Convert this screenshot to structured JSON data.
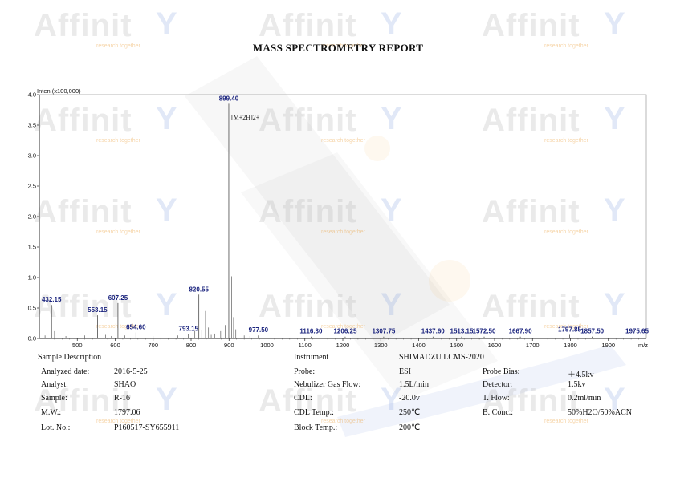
{
  "report_title": "MASS SPECTROMETRY REPORT",
  "watermark": {
    "brand": "Affinit",
    "tagline": "research together"
  },
  "chart_data": {
    "type": "line",
    "ylabel": "Inten.(x100,000)",
    "xlabel": "m/z",
    "xlim": [
      400,
      2000
    ],
    "ylim": [
      0,
      4.0
    ],
    "yticks": [
      "0.0",
      "0.5",
      "1.0",
      "1.5",
      "2.0",
      "2.5",
      "3.0",
      "3.5",
      "4.0"
    ],
    "xticks": [
      "500",
      "600",
      "700",
      "800",
      "900",
      "1000",
      "1100",
      "1200",
      "1300",
      "1400",
      "1500",
      "1600",
      "1700",
      "1800",
      "1900",
      "m/z"
    ],
    "annotation": "[M+2H]2+",
    "peaks": [
      {
        "mz": 432.15,
        "intensity": 0.55,
        "label": "432.15"
      },
      {
        "mz": 553.15,
        "intensity": 0.38,
        "label": "553.15"
      },
      {
        "mz": 607.25,
        "intensity": 0.58,
        "label": "607.25"
      },
      {
        "mz": 654.6,
        "intensity": 0.1,
        "label": "654.60"
      },
      {
        "mz": 793.15,
        "intensity": 0.07,
        "label": "793.15"
      },
      {
        "mz": 820.55,
        "intensity": 0.72,
        "label": "820.55"
      },
      {
        "mz": 899.4,
        "intensity": 3.85,
        "label": "899.40"
      },
      {
        "mz": 977.5,
        "intensity": 0.05,
        "label": "977.50"
      },
      {
        "mz": 1116.3,
        "intensity": 0.03,
        "label": "1116.30"
      },
      {
        "mz": 1206.25,
        "intensity": 0.03,
        "label": "1206.25"
      },
      {
        "mz": 1307.75,
        "intensity": 0.03,
        "label": "1307.75"
      },
      {
        "mz": 1437.6,
        "intensity": 0.03,
        "label": "1437.60"
      },
      {
        "mz": 1513.15,
        "intensity": 0.03,
        "label": "1513.15"
      },
      {
        "mz": 1572.5,
        "intensity": 0.03,
        "label": "1572.50"
      },
      {
        "mz": 1667.9,
        "intensity": 0.03,
        "label": "1667.90"
      },
      {
        "mz": 1797.85,
        "intensity": 0.06,
        "label": "1797.85"
      },
      {
        "mz": 1857.5,
        "intensity": 0.03,
        "label": "1857.50"
      },
      {
        "mz": 1975.65,
        "intensity": 0.03,
        "label": "1975.65"
      }
    ],
    "minor_peaks": [
      {
        "mz": 415,
        "intensity": 0.05
      },
      {
        "mz": 440,
        "intensity": 0.12
      },
      {
        "mz": 470,
        "intensity": 0.04
      },
      {
        "mz": 520,
        "intensity": 0.05
      },
      {
        "mz": 575,
        "intensity": 0.06
      },
      {
        "mz": 590,
        "intensity": 0.04
      },
      {
        "mz": 625,
        "intensity": 0.05
      },
      {
        "mz": 700,
        "intensity": 0.04
      },
      {
        "mz": 765,
        "intensity": 0.05
      },
      {
        "mz": 810,
        "intensity": 0.12
      },
      {
        "mz": 828,
        "intensity": 0.14
      },
      {
        "mz": 838,
        "intensity": 0.45
      },
      {
        "mz": 846,
        "intensity": 0.18
      },
      {
        "mz": 853,
        "intensity": 0.06
      },
      {
        "mz": 862,
        "intensity": 0.08
      },
      {
        "mz": 878,
        "intensity": 0.12
      },
      {
        "mz": 890,
        "intensity": 0.22
      },
      {
        "mz": 903,
        "intensity": 0.62
      },
      {
        "mz": 907,
        "intensity": 1.02
      },
      {
        "mz": 912,
        "intensity": 0.35
      },
      {
        "mz": 918,
        "intensity": 0.15
      },
      {
        "mz": 940,
        "intensity": 0.05
      },
      {
        "mz": 955,
        "intensity": 0.04
      }
    ]
  },
  "info_left": {
    "section": "Sample Description",
    "rows": [
      {
        "label": "Analyzed date:",
        "value": "2016-5-25"
      },
      {
        "label": "Analyst:",
        "value": "SHAO"
      },
      {
        "label": "Sample:",
        "value": "R-16"
      },
      {
        "label": "M.W.:",
        "value": "1797.06"
      },
      {
        "label": "Lot. No.:",
        "value": "P160517-SY655911"
      }
    ]
  },
  "info_right": {
    "section_label": "Instrument",
    "section_value": "SHIMADZU LCMS-2020",
    "rows": [
      {
        "label": "Probe:",
        "value": "ESI",
        "label2": "Probe Bias:",
        "value2": "＋4.5kv"
      },
      {
        "label": "Nebulizer Gas Flow:",
        "value": "1.5L/min",
        "label2": "Detector:",
        "value2": "1.5kv"
      },
      {
        "label": "CDL:",
        "value": "-20.0v",
        "label2": "T. Flow:",
        "value2": "0.2ml/min"
      },
      {
        "label": "CDL Temp.:",
        "value": "250℃",
        "label2": "B. Conc.:",
        "value2": "50%H2O/50%ACN"
      },
      {
        "label": "Block Temp.:",
        "value": "200℃",
        "label2": "",
        "value2": ""
      }
    ]
  }
}
